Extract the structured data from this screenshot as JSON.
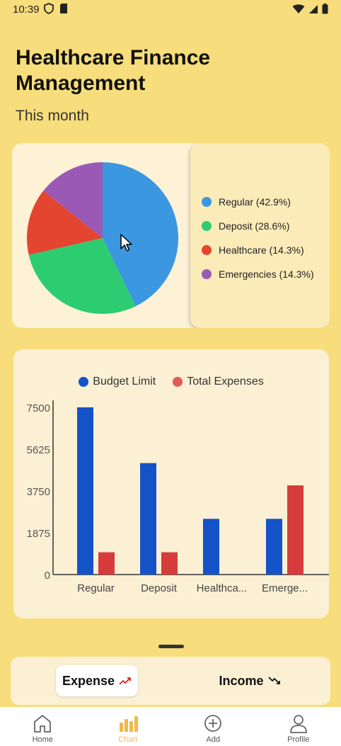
{
  "status": {
    "time": "10:39"
  },
  "header": {
    "title": "Healthcare Finance Management",
    "subtitle": "This month"
  },
  "pie": {
    "legend": [
      {
        "label": "Regular (42.9%)",
        "color": "#3b97e0",
        "value": 42.9
      },
      {
        "label": "Deposit (28.6%)",
        "color": "#2ecc71",
        "value": 28.6
      },
      {
        "label": "Healthcare (14.3%)",
        "color": "#e34530",
        "value": 14.3
      },
      {
        "label": "Emergencies (14.3%)",
        "color": "#9b59b6",
        "value": 14.3
      }
    ]
  },
  "chart_data": {
    "type": "bar",
    "categories": [
      "Regular",
      "Deposit",
      "Healthca...",
      "Emerge..."
    ],
    "series": [
      {
        "name": "Budget Limit",
        "color": "#1452c8",
        "values": [
          7500,
          5000,
          2500,
          2500
        ]
      },
      {
        "name": "Total Expenses",
        "color": "#d63c3c",
        "values": [
          1000,
          1000,
          0,
          4000
        ]
      }
    ],
    "yticks": [
      "7500",
      "5625",
      "3750",
      "1875",
      "0"
    ],
    "ylim": [
      0,
      7500
    ],
    "legend_position": "top"
  },
  "toggle": {
    "expense_label": "Expense",
    "income_label": "Income"
  },
  "nav": {
    "items": [
      {
        "label": "Home",
        "icon": "home-icon"
      },
      {
        "label": "Chart",
        "icon": "chart-icon",
        "active": true
      },
      {
        "label": "Add",
        "icon": "add-icon"
      },
      {
        "label": "Profile",
        "icon": "profile-icon"
      }
    ]
  }
}
